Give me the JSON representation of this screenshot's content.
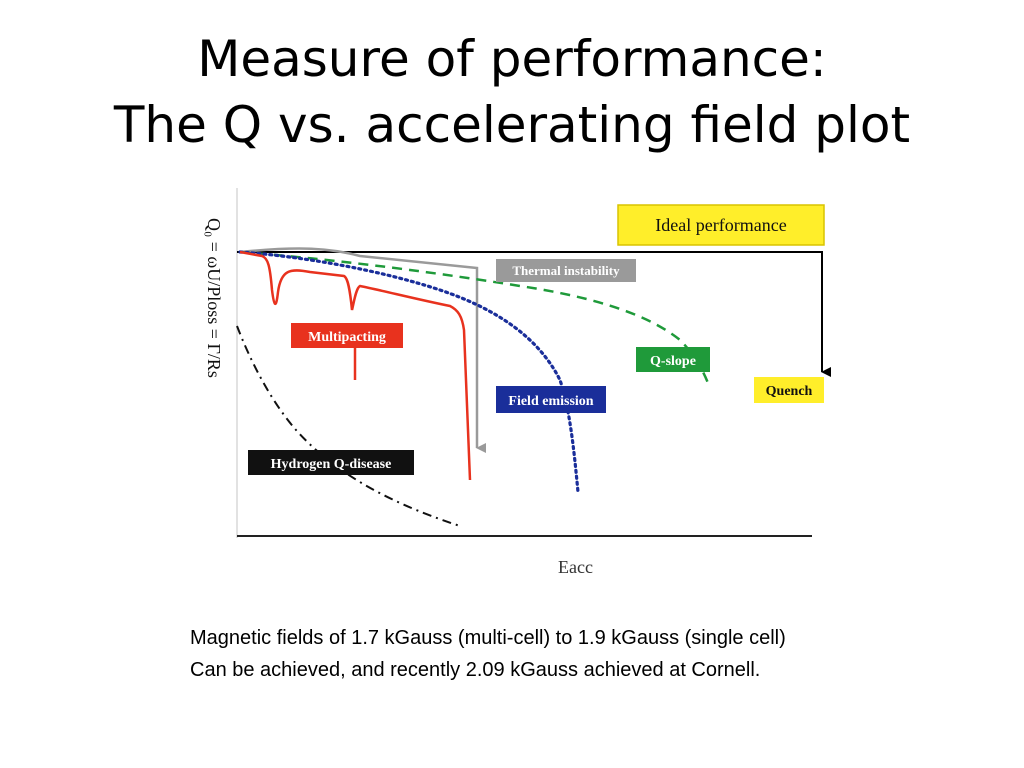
{
  "title": {
    "line1": "Measure of performance:",
    "line2": "The Q vs. accelerating field plot"
  },
  "figure": {
    "y_axis_label": "Q₀ = ωU/Ploss = Γ/Rs",
    "x_axis_label": "Eacc",
    "labels": {
      "ideal": "Ideal performance",
      "thermal": "Thermal instability",
      "multipacting": "Multipacting",
      "qslope": "Q-slope",
      "quench": "Quench",
      "field_emission": "Field emission",
      "hydrogen": "Hydrogen Q-disease"
    },
    "colors": {
      "ideal": "#000000",
      "thermal": "#9a9a9a",
      "multipacting": "#e8321e",
      "qslope": "#1f9a3a",
      "quench_box": "#ffee2a",
      "field_emission": "#1a2e9a",
      "hydrogen": "#111111"
    }
  },
  "caption": {
    "line1": "Magnetic fields of 1.7 kGauss (multi-cell) to 1.9 kGauss (single cell)",
    "line2": "Can be achieved, and recently 2.09 kGauss achieved at Cornell."
  }
}
